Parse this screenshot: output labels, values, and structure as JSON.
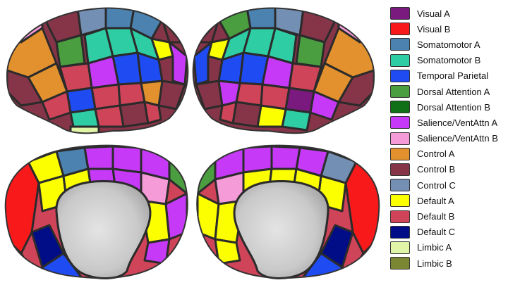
{
  "legend": {
    "items": [
      {
        "label": "Visual A",
        "color": "#7a1a7e"
      },
      {
        "label": "Visual B",
        "color": "#f8191a"
      },
      {
        "label": "Somatomotor A",
        "color": "#4b82b0"
      },
      {
        "label": "Somatomotor B",
        "color": "#2fcda4"
      },
      {
        "label": "Temporal Parietal",
        "color": "#1f4bf2"
      },
      {
        "label": "Dorsal Attention A",
        "color": "#4b9e40"
      },
      {
        "label": "Dorsal Attention B",
        "color": "#0f7018"
      },
      {
        "label": "Salience/VentAttn A",
        "color": "#c63af7"
      },
      {
        "label": "Salience/VentAttn B",
        "color": "#f59bd8"
      },
      {
        "label": "Control A",
        "color": "#e3912f"
      },
      {
        "label": "Control B",
        "color": "#853547"
      },
      {
        "label": "Control C",
        "color": "#7390b4"
      },
      {
        "label": "Default A",
        "color": "#fcff00"
      },
      {
        "label": "Default B",
        "color": "#cf4459"
      },
      {
        "label": "Default C",
        "color": "#000d87"
      },
      {
        "label": "Limbic A",
        "color": "#e0f5a8"
      },
      {
        "label": "Limbic B",
        "color": "#7b8733"
      }
    ]
  },
  "views": [
    {
      "name": "left-lateral",
      "icon": "brain-surface-lateral"
    },
    {
      "name": "right-lateral",
      "icon": "brain-surface-lateral"
    },
    {
      "name": "left-medial",
      "icon": "brain-surface-medial"
    },
    {
      "name": "right-medial",
      "icon": "brain-surface-medial"
    }
  ]
}
